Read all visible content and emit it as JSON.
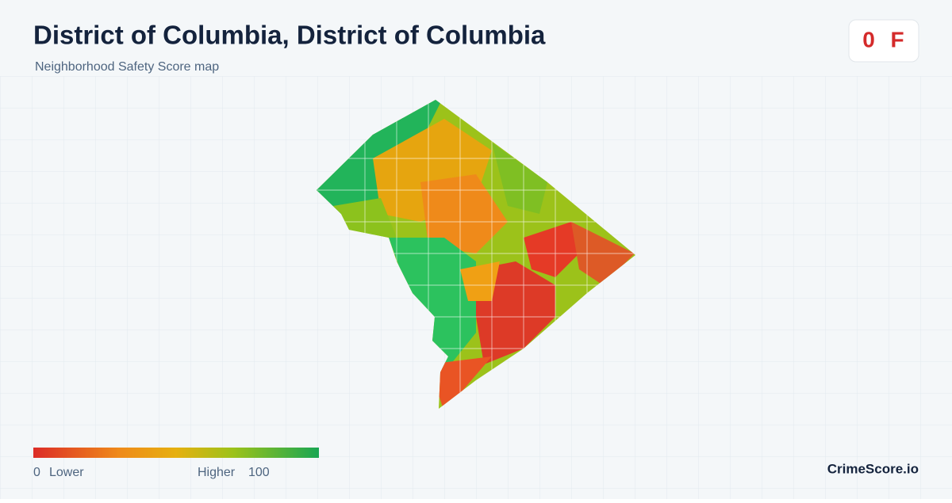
{
  "header": {
    "title": "District of Columbia, District of Columbia",
    "subtitle": "Neighborhood Safety Score map"
  },
  "score": {
    "value": 0,
    "grade": "F"
  },
  "legend": {
    "min": 0,
    "min_label": "Lower",
    "max_label": "Higher",
    "max": 100
  },
  "brand": "CrimeScore.io"
}
